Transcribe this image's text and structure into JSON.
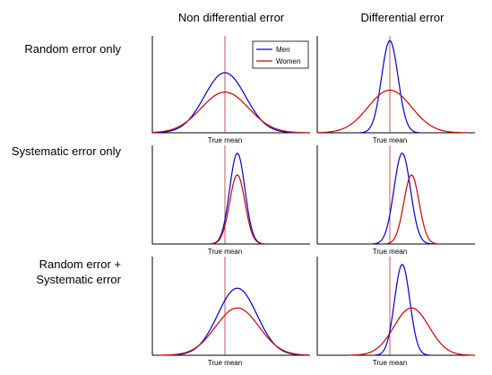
{
  "chart_data": {
    "type": "line",
    "column_titles": [
      "Non differential error",
      "Differential error"
    ],
    "row_labels": [
      [
        "Random error only"
      ],
      [
        "Systematic error only"
      ],
      [
        "Random error +",
        "Systematic error"
      ]
    ],
    "xlabel": "True mean",
    "legend": {
      "placement": "top-right",
      "entries": [
        {
          "name": "Men",
          "color": "#0000cc"
        },
        {
          "name": "Women",
          "color": "#cc0000"
        }
      ]
    },
    "x_range": [
      -3.5,
      3.5
    ],
    "true_mean": 0,
    "grid": false,
    "panels": [
      {
        "row": 0,
        "col": 0,
        "ylim": [
          0,
          1
        ],
        "series": [
          {
            "name": "Men",
            "color": "#0000cc",
            "mean": 0,
            "sd": 1.0,
            "peak": 0.62
          },
          {
            "name": "Women",
            "color": "#cc0000",
            "mean": 0,
            "sd": 1.15,
            "peak": 0.42
          }
        ]
      },
      {
        "row": 0,
        "col": 1,
        "ylim": [
          0,
          1
        ],
        "series": [
          {
            "name": "Men",
            "color": "#0000cc",
            "mean": 0,
            "sd": 0.4,
            "peak": 0.95
          },
          {
            "name": "Women",
            "color": "#cc0000",
            "mean": 0,
            "sd": 1.05,
            "peak": 0.44
          }
        ]
      },
      {
        "row": 1,
        "col": 0,
        "ylim": [
          0,
          1
        ],
        "series": [
          {
            "name": "Men",
            "color": "#0000cc",
            "mean": 0.6,
            "sd": 0.37,
            "peak": 0.92
          },
          {
            "name": "Women",
            "color": "#cc0000",
            "mean": 0.6,
            "sd": 0.37,
            "peak": 0.7
          }
        ]
      },
      {
        "row": 1,
        "col": 1,
        "ylim": [
          0,
          1
        ],
        "series": [
          {
            "name": "Men",
            "color": "#0000cc",
            "mean": 0.6,
            "sd": 0.4,
            "peak": 0.92
          },
          {
            "name": "Women",
            "color": "#cc0000",
            "mean": 1.05,
            "sd": 0.37,
            "peak": 0.7
          }
        ]
      },
      {
        "row": 2,
        "col": 0,
        "ylim": [
          0,
          1
        ],
        "series": [
          {
            "name": "Men",
            "color": "#0000cc",
            "mean": 0.6,
            "sd": 0.95,
            "peak": 0.68
          },
          {
            "name": "Women",
            "color": "#cc0000",
            "mean": 0.6,
            "sd": 1.05,
            "peak": 0.48
          }
        ]
      },
      {
        "row": 2,
        "col": 1,
        "ylim": [
          0,
          1
        ],
        "series": [
          {
            "name": "Men",
            "color": "#0000cc",
            "mean": 0.6,
            "sd": 0.37,
            "peak": 0.92
          },
          {
            "name": "Women",
            "color": "#cc0000",
            "mean": 1.05,
            "sd": 0.85,
            "peak": 0.48
          }
        ]
      }
    ]
  }
}
